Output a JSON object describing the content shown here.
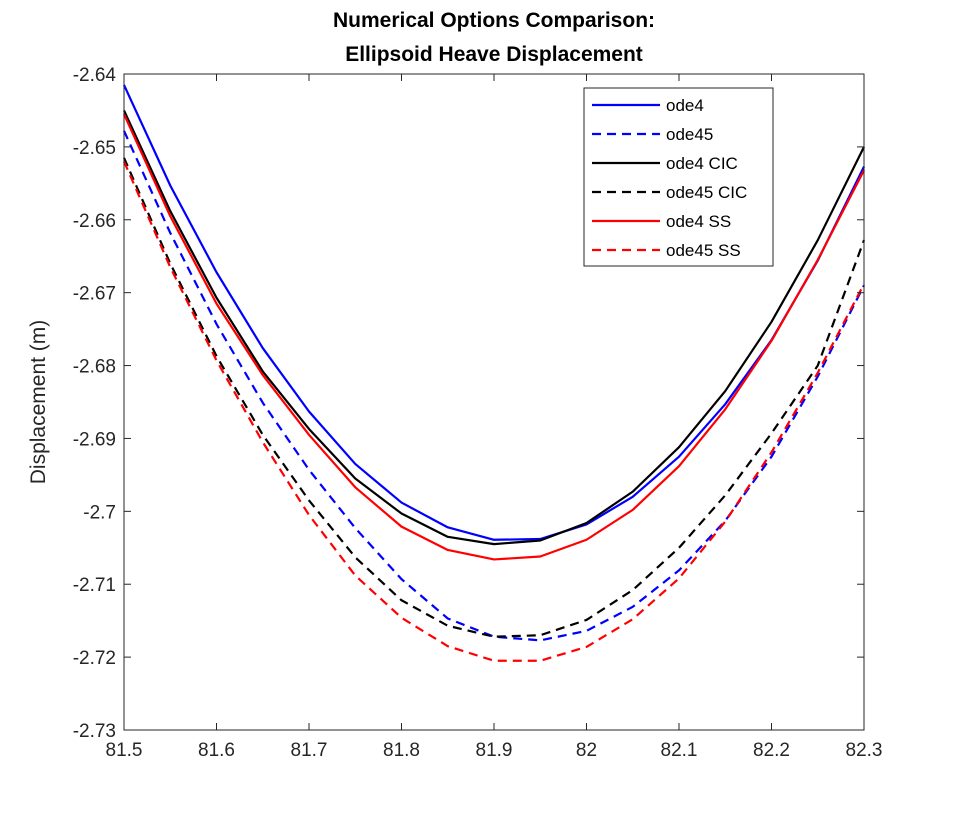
{
  "chart_data": {
    "type": "line",
    "title": [
      "Numerical Options Comparison:",
      "Ellipsoid Heave Displacement"
    ],
    "xlabel": "",
    "ylabel": "Displacement (m)",
    "xlim": [
      81.5,
      82.3
    ],
    "ylim": [
      -2.73,
      -2.64
    ],
    "xticks": [
      81.5,
      81.6,
      81.7,
      81.8,
      81.9,
      82,
      82.1,
      82.2,
      82.3
    ],
    "xtick_labels": [
      "81.5",
      "81.6",
      "81.7",
      "81.8",
      "81.9",
      "82",
      "82.1",
      "82.2",
      "82.3"
    ],
    "yticks": [
      -2.64,
      -2.65,
      -2.66,
      -2.67,
      -2.68,
      -2.69,
      -2.7,
      -2.71,
      -2.72,
      -2.73
    ],
    "ytick_labels": [
      "-2.64",
      "-2.65",
      "-2.66",
      "-2.67",
      "-2.68",
      "-2.69",
      "-2.7",
      "-2.71",
      "-2.72",
      "-2.73"
    ],
    "grid": false,
    "legend_position": "top-right",
    "x": [
      81.5,
      81.55,
      81.6,
      81.65,
      81.7,
      81.75,
      81.8,
      81.85,
      81.9,
      81.95,
      82.0,
      82.05,
      82.1,
      82.15,
      82.2,
      82.25,
      82.3
    ],
    "series": [
      {
        "name": "ode4",
        "color": "#0000ff",
        "dash": false,
        "values": [
          -2.6415,
          -2.6553,
          -2.6672,
          -2.6776,
          -2.6863,
          -2.6935,
          -2.6988,
          -2.7022,
          -2.7039,
          -2.7038,
          -2.7018,
          -2.698,
          -2.6925,
          -2.6853,
          -2.6765,
          -2.6656,
          -2.6527
        ]
      },
      {
        "name": "ode45",
        "color": "#0000ff",
        "dash": true,
        "values": [
          -2.6478,
          -2.6618,
          -2.6743,
          -2.6851,
          -2.6943,
          -2.7023,
          -2.7093,
          -2.7147,
          -2.7172,
          -2.7177,
          -2.7164,
          -2.7131,
          -2.7081,
          -2.7013,
          -2.6925,
          -2.6815,
          -2.669
        ]
      },
      {
        "name": "ode4 CIC",
        "color": "#000000",
        "dash": false,
        "values": [
          -2.645,
          -2.6588,
          -2.6707,
          -2.6808,
          -2.6887,
          -2.6955,
          -2.7003,
          -2.7035,
          -2.7045,
          -2.704,
          -2.7016,
          -2.6973,
          -2.6912,
          -2.6835,
          -2.674,
          -2.6628,
          -2.65
        ]
      },
      {
        "name": "ode45 CIC",
        "color": "#000000",
        "dash": true,
        "values": [
          -2.6515,
          -2.666,
          -2.6787,
          -2.6895,
          -2.6985,
          -2.7063,
          -2.7122,
          -2.7157,
          -2.7172,
          -2.717,
          -2.7149,
          -2.7108,
          -2.705,
          -2.6978,
          -2.6893,
          -2.68,
          -2.6628
        ]
      },
      {
        "name": "ode4 SS",
        "color": "#ff0000",
        "dash": false,
        "values": [
          -2.6455,
          -2.6595,
          -2.6715,
          -2.6813,
          -2.6895,
          -2.6967,
          -2.7021,
          -2.7053,
          -2.7066,
          -2.7062,
          -2.7039,
          -2.6998,
          -2.6938,
          -2.686,
          -2.6766,
          -2.6655,
          -2.6532
        ]
      },
      {
        "name": "ode45 SS",
        "color": "#ff0000",
        "dash": true,
        "values": [
          -2.652,
          -2.6665,
          -2.6793,
          -2.6905,
          -2.7005,
          -2.7088,
          -2.7146,
          -2.7185,
          -2.7205,
          -2.7205,
          -2.7186,
          -2.7148,
          -2.7092,
          -2.7014,
          -2.6919,
          -2.681,
          -2.6688
        ]
      }
    ]
  }
}
